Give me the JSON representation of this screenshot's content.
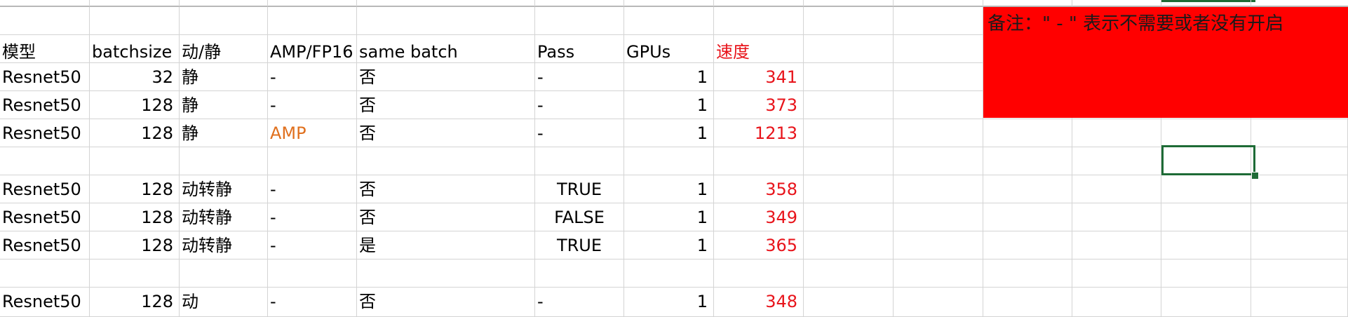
{
  "headers": {
    "model": "模型",
    "batchsize": "batchsize",
    "mode": "动/静",
    "amp": "AMP/FP16",
    "same_batch": "same batch",
    "pass": "Pass",
    "gpus": "GPUs",
    "speed": "速度"
  },
  "rows": [
    {
      "model": "Resnet50",
      "batchsize": "32",
      "mode": "静",
      "amp": "-",
      "same_batch": "否",
      "pass": "-",
      "gpus": "1",
      "speed": "341"
    },
    {
      "model": "Resnet50",
      "batchsize": "128",
      "mode": "静",
      "amp": "-",
      "same_batch": "否",
      "pass": "-",
      "gpus": "1",
      "speed": "373"
    },
    {
      "model": "Resnet50",
      "batchsize": "128",
      "mode": "静",
      "amp": "AMP",
      "same_batch": "否",
      "pass": "-",
      "gpus": "1",
      "speed": "1213"
    },
    null,
    {
      "model": "Resnet50",
      "batchsize": "128",
      "mode": "动转静",
      "amp": "-",
      "same_batch": "否",
      "pass": "TRUE",
      "gpus": "1",
      "speed": "358"
    },
    {
      "model": "Resnet50",
      "batchsize": "128",
      "mode": "动转静",
      "amp": "-",
      "same_batch": "否",
      "pass": "FALSE",
      "gpus": "1",
      "speed": "349"
    },
    {
      "model": "Resnet50",
      "batchsize": "128",
      "mode": "动转静",
      "amp": "-",
      "same_batch": "是",
      "pass": "TRUE",
      "gpus": "1",
      "speed": "365"
    },
    null,
    {
      "model": "Resnet50",
      "batchsize": "128",
      "mode": "动",
      "amp": "-",
      "same_batch": "否",
      "pass": "-",
      "gpus": "1",
      "speed": "348"
    }
  ],
  "note": "备注：\" - \" 表示不需要或者没有开启",
  "colors": {
    "speed_text": "#e8141b",
    "amp_highlight": "#e0701e",
    "note_background": "#ff0000",
    "selection_border": "#1e6b36"
  }
}
